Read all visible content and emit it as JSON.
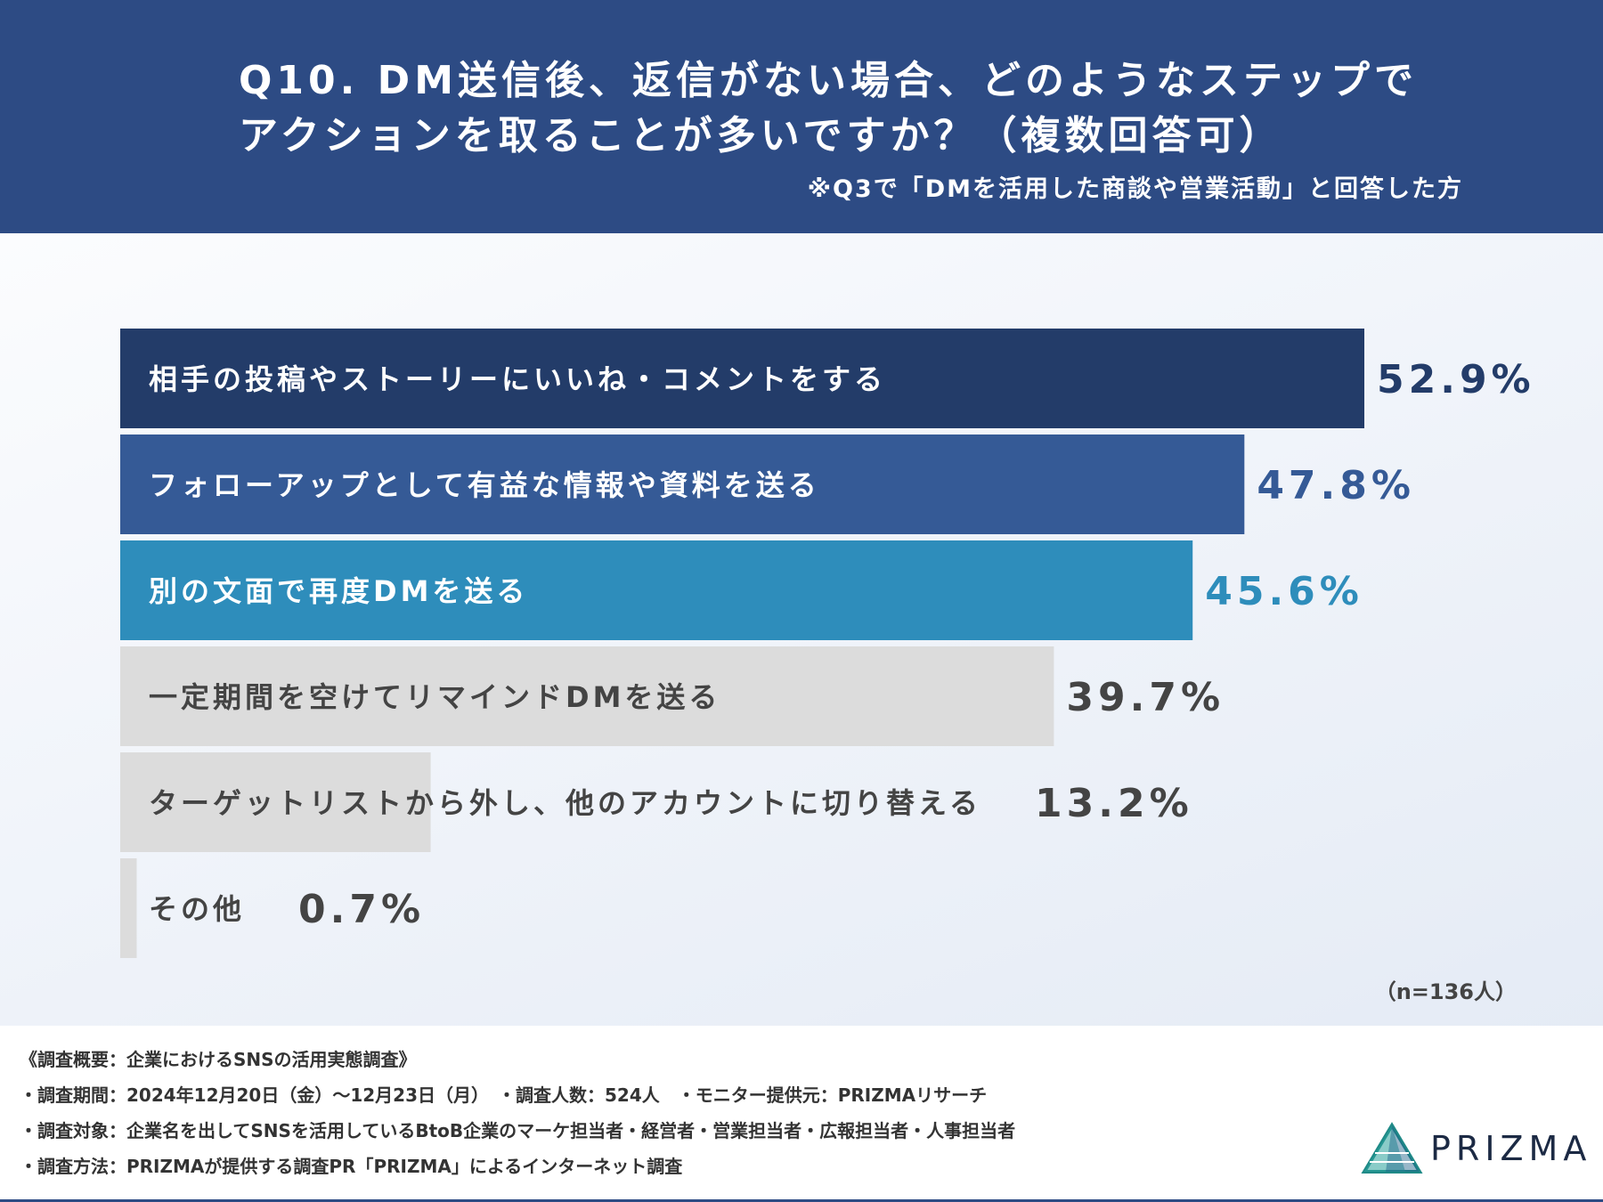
{
  "header": {
    "title_line1": "Q10. DM送信後、返信がない場合、どのようなステップで",
    "title_line2": "アクションを取ることが多いですか？（複数回答可）",
    "subtitle": "※Q3で「DMを活用した商談や営業活動」と回答した方"
  },
  "colors": {
    "header_bg": "#2d4b84",
    "bar1": "#233c69",
    "bar2": "#355a96",
    "bar3": "#2e8dbb",
    "bar_gray": "#dcdcdc",
    "text_gray": "#444444"
  },
  "chart_data": {
    "type": "bar",
    "orientation": "horizontal",
    "categories": [
      "相手の投稿やストーリーにいいね・コメントをする",
      "フォローアップとして有益な情報や資料を送る",
      "別の文面で再度DMを送る",
      "一定期間を空けてリマインドDMを送る",
      "ターゲットリストから外し、他のアカウントに切り替える",
      "その他"
    ],
    "values": [
      52.9,
      47.8,
      45.6,
      39.7,
      13.2,
      0.7
    ],
    "value_labels": [
      "52.9%",
      "47.8%",
      "45.6%",
      "39.7%",
      "13.2%",
      "0.7%"
    ],
    "bar_colors": [
      "#233c69",
      "#355a96",
      "#2e8dbb",
      "#dcdcdc",
      "#dcdcdc",
      "#dcdcdc"
    ],
    "label_colors": [
      "#ffffff",
      "#ffffff",
      "#ffffff",
      "#444444",
      "#444444",
      "#444444"
    ],
    "value_colors": [
      "#233c69",
      "#355a96",
      "#2e8dbb",
      "#444444",
      "#444444",
      "#444444"
    ],
    "xlim": [
      0,
      100
    ],
    "n_label": "（n=136人）"
  },
  "footer": {
    "note1": "《調査概要：企業におけるSNSの活用実態調査》",
    "note2": "・調査期間：2024年12月20日（金）～12月23日（月）　・調査人数：524人　・モニター提供元：PRIZMAリサーチ",
    "note3": "・調査対象：企業名を出してSNSを活用しているBtoB企業のマーケ担当者・経営者・営業担当者・広報担当者・人事担当者",
    "note4": "・調査方法：PRIZMAが提供する調査PR「PRIZMA」によるインターネット調査"
  },
  "logo": {
    "text": "PRIZMA",
    "icon": "prizma-triangle-logo"
  }
}
